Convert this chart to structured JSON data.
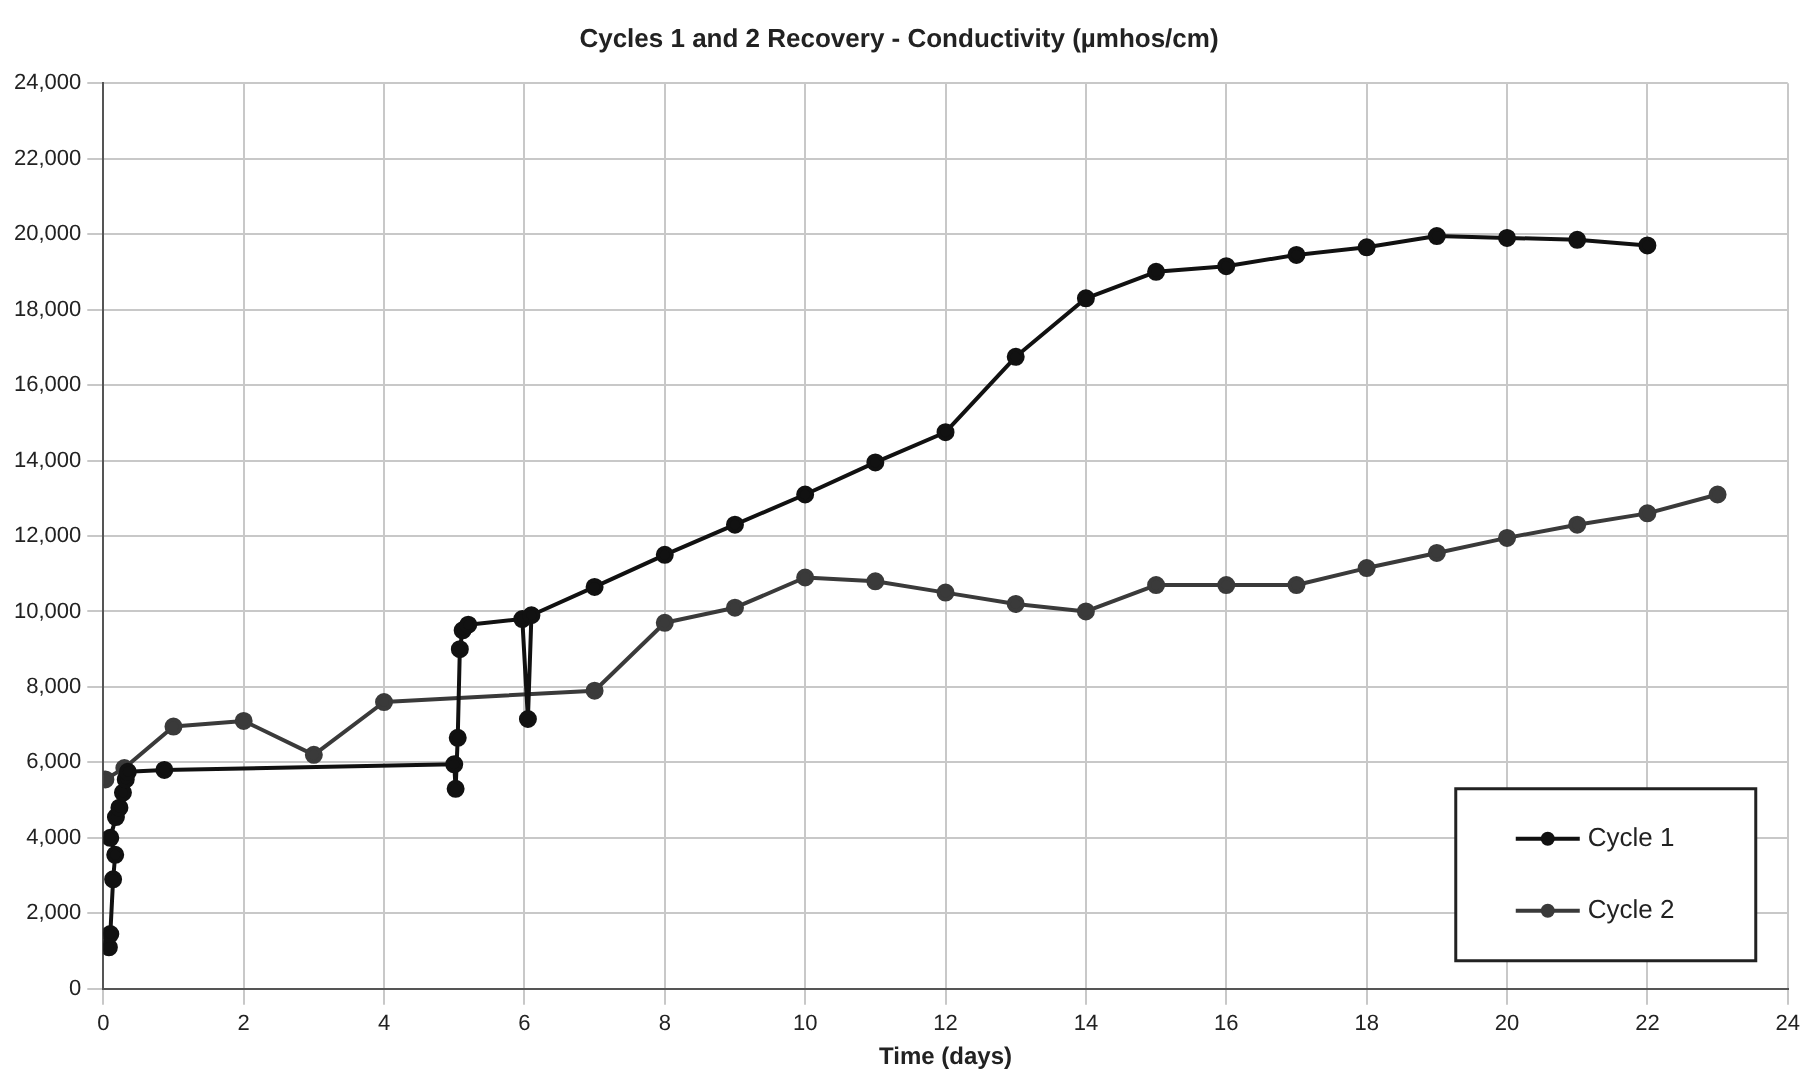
{
  "chart_data": {
    "type": "line",
    "title": "Cycles 1 and 2 Recovery - Conductivity (µmhos/cm)",
    "xlabel": "Time (days)",
    "xlim": [
      0,
      24
    ],
    "xticks": [
      0,
      2,
      4,
      6,
      8,
      10,
      12,
      14,
      16,
      18,
      20,
      22,
      24
    ],
    "ylim": [
      0,
      24000
    ],
    "yticks": [
      {
        "value": 0,
        "label": "0"
      },
      {
        "value": 2000,
        "label": "2,000"
      },
      {
        "value": 4000,
        "label": "4,000"
      },
      {
        "value": 6000,
        "label": "6,000"
      },
      {
        "value": 8000,
        "label": "8,000"
      },
      {
        "value": 10000,
        "label": "10,000"
      },
      {
        "value": 12000,
        "label": "12,000"
      },
      {
        "value": 14000,
        "label": "14,000"
      },
      {
        "value": 16000,
        "label": "16,000"
      },
      {
        "value": 18000,
        "label": "18,000"
      },
      {
        "value": 20000,
        "label": "20,000"
      },
      {
        "value": 22000,
        "label": "22,000"
      },
      {
        "value": 24000,
        "label": "24,000"
      }
    ],
    "grid": true,
    "legend": "bottom right",
    "marker": "circle",
    "line_style": "solid",
    "series": [
      {
        "name": "Cycle 1",
        "color": "#111111",
        "x": [
          0.08,
          0.1,
          0.14,
          0.17,
          0.1,
          0.18,
          0.23,
          0.28,
          0.32,
          0.35,
          0.87,
          5.0,
          5.02,
          5.05,
          5.08,
          5.12,
          5.2,
          5.97,
          6.05,
          6.1,
          7,
          8,
          9,
          10,
          11,
          12,
          13,
          14,
          15,
          16,
          17,
          18,
          19,
          20,
          21,
          22
        ],
        "values": [
          1100,
          1450,
          2900,
          3550,
          4000,
          4550,
          4800,
          5200,
          5550,
          5750,
          5800,
          5950,
          5300,
          6650,
          9000,
          9500,
          9650,
          9800,
          7150,
          9900,
          10650,
          11500,
          12300,
          13100,
          13950,
          14750,
          16750,
          18300,
          19000,
          19150,
          19450,
          19650,
          19950,
          19900,
          19850,
          19700
        ]
      },
      {
        "name": "Cycle 2",
        "color": "#3a3a3a",
        "x": [
          0.03,
          0.3,
          1,
          2,
          3,
          4,
          7,
          8,
          9,
          10,
          11,
          12,
          13,
          14,
          15,
          16,
          17,
          18,
          19,
          20,
          21,
          22,
          23
        ],
        "values": [
          5550,
          5850,
          6950,
          7100,
          6200,
          7600,
          7900,
          9700,
          10100,
          10900,
          10800,
          10500,
          10200,
          10000,
          10700,
          10700,
          10700,
          11150,
          11550,
          11950,
          12300,
          12600,
          13100
        ]
      }
    ]
  }
}
